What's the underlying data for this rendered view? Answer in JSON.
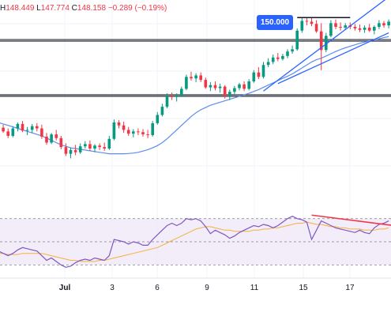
{
  "header": {
    "high_prefix": "H",
    "high": "148.449",
    "low_prefix": "L",
    "low": "147.774",
    "close_prefix": "C",
    "close": "148.158",
    "change": "−0.289 (−0.19%)"
  },
  "price_label": "150.000",
  "x_ticks": [
    {
      "label": "Jul",
      "bold": true
    },
    {
      "label": "3",
      "bold": false
    },
    {
      "label": "6",
      "bold": false
    },
    {
      "label": "9",
      "bold": false
    },
    {
      "label": "11",
      "bold": false
    },
    {
      "label": "15",
      "bold": false
    },
    {
      "label": "17",
      "bold": false
    }
  ],
  "colors": {
    "up": "#089981",
    "down": "#f23645",
    "ma": "#5b8def",
    "channel": "#2962ff",
    "hline": "#2a2e39",
    "rsi": "#7e57c2",
    "rsi_ma": "#f5b041",
    "rsi_band": "#ede7f6",
    "divergence": "#f23645"
  },
  "chart_data": [
    {
      "type": "candlestick",
      "title": "",
      "ylim": [
        138.2,
        150.9
      ],
      "candles": [
        [
          142.25,
          142.45,
          141.75,
          142.35
        ],
        [
          142.35,
          142.55,
          142.0,
          142.1
        ],
        [
          142.1,
          142.3,
          141.65,
          141.8
        ],
        [
          141.8,
          142.45,
          141.7,
          142.3
        ],
        [
          142.3,
          142.7,
          142.1,
          142.6
        ],
        [
          142.6,
          142.8,
          142.05,
          142.15
        ],
        [
          142.15,
          142.4,
          141.85,
          142.2
        ],
        [
          142.2,
          142.6,
          142.0,
          142.45
        ],
        [
          142.45,
          142.65,
          142.1,
          142.3
        ],
        [
          142.3,
          142.55,
          141.6,
          141.75
        ],
        [
          141.75,
          142.0,
          141.2,
          141.35
        ],
        [
          141.35,
          142.0,
          141.25,
          141.9
        ],
        [
          141.9,
          142.2,
          141.5,
          141.65
        ],
        [
          141.65,
          141.8,
          140.9,
          141.05
        ],
        [
          141.05,
          141.3,
          140.45,
          140.6
        ],
        [
          140.6,
          141.0,
          140.3,
          140.85
        ],
        [
          140.85,
          141.2,
          140.5,
          140.7
        ],
        [
          140.7,
          141.3,
          140.6,
          141.1
        ],
        [
          141.1,
          141.45,
          140.95,
          141.25
        ],
        [
          141.25,
          141.5,
          140.8,
          140.95
        ],
        [
          140.95,
          141.25,
          140.7,
          141.15
        ],
        [
          141.15,
          141.3,
          140.85,
          141.05
        ],
        [
          141.05,
          141.35,
          140.8,
          140.95
        ],
        [
          140.95,
          141.8,
          140.85,
          141.6
        ],
        [
          141.6,
          142.9,
          141.5,
          142.7
        ],
        [
          142.7,
          142.85,
          142.3,
          142.5
        ],
        [
          142.5,
          142.75,
          142.0,
          142.2
        ],
        [
          142.2,
          142.4,
          141.8,
          141.95
        ],
        [
          141.95,
          142.25,
          141.7,
          142.1
        ],
        [
          142.1,
          142.3,
          141.85,
          142.05
        ],
        [
          142.05,
          142.25,
          141.75,
          141.9
        ],
        [
          141.9,
          142.2,
          141.65,
          141.85
        ],
        [
          141.85,
          142.8,
          141.75,
          142.65
        ],
        [
          142.65,
          143.4,
          142.55,
          143.2
        ],
        [
          143.2,
          143.95,
          143.1,
          143.75
        ],
        [
          143.75,
          144.65,
          143.65,
          144.45
        ],
        [
          144.45,
          144.7,
          144.2,
          144.4
        ],
        [
          144.4,
          144.65,
          144.1,
          144.5
        ],
        [
          144.5,
          145.1,
          144.4,
          144.95
        ],
        [
          144.95,
          145.9,
          144.85,
          145.75
        ],
        [
          145.75,
          146.1,
          145.5,
          145.65
        ],
        [
          145.65,
          146.0,
          145.4,
          145.85
        ],
        [
          145.85,
          146.05,
          145.4,
          145.55
        ],
        [
          145.55,
          145.7,
          144.95,
          145.05
        ],
        [
          145.05,
          145.4,
          144.8,
          145.2
        ],
        [
          145.2,
          145.45,
          144.85,
          145.0
        ],
        [
          145.0,
          145.3,
          144.7,
          145.1
        ],
        [
          145.1,
          145.2,
          144.3,
          144.5
        ],
        [
          144.5,
          144.9,
          144.2,
          144.75
        ],
        [
          144.75,
          145.15,
          144.6,
          145.0
        ],
        [
          145.0,
          145.35,
          144.85,
          145.25
        ],
        [
          145.25,
          145.45,
          144.8,
          144.95
        ],
        [
          144.95,
          145.6,
          144.85,
          145.45
        ],
        [
          145.45,
          146.2,
          145.35,
          146.05
        ],
        [
          146.05,
          146.4,
          145.6,
          145.75
        ],
        [
          145.75,
          146.75,
          145.65,
          146.55
        ],
        [
          146.55,
          147.0,
          146.4,
          146.75
        ],
        [
          146.75,
          147.25,
          146.6,
          147.05
        ],
        [
          147.05,
          147.35,
          146.8,
          146.95
        ],
        [
          146.95,
          147.3,
          146.85,
          147.15
        ],
        [
          147.15,
          147.6,
          147.0,
          147.45
        ],
        [
          147.45,
          147.85,
          147.3,
          147.6
        ],
        [
          147.6,
          149.0,
          147.5,
          148.85
        ],
        [
          148.85,
          149.75,
          148.7,
          149.5
        ],
        [
          149.5,
          149.7,
          149.2,
          149.45
        ],
        [
          149.45,
          149.7,
          149.15,
          149.3
        ],
        [
          149.3,
          149.55,
          148.7,
          148.8
        ],
        [
          148.8,
          149.35,
          146.2,
          147.55
        ],
        [
          147.55,
          148.7,
          147.4,
          148.5
        ],
        [
          148.5,
          149.55,
          148.4,
          149.35
        ],
        [
          149.35,
          149.6,
          148.95,
          149.1
        ],
        [
          149.1,
          149.4,
          148.85,
          149.05
        ],
        [
          149.05,
          149.35,
          148.9,
          149.2
        ],
        [
          149.2,
          149.4,
          148.95,
          149.1
        ],
        [
          149.1,
          149.3,
          148.85,
          149.0
        ],
        [
          149.0,
          149.25,
          148.75,
          148.9
        ],
        [
          148.9,
          149.2,
          148.7,
          149.05
        ],
        [
          149.05,
          149.3,
          148.75,
          148.85
        ],
        [
          148.85,
          149.2,
          148.6,
          149.1
        ],
        [
          149.1,
          149.55,
          148.95,
          149.35
        ],
        [
          149.35,
          149.5,
          149.05,
          149.2
        ],
        [
          149.2,
          149.6,
          149.0,
          149.45
        ]
      ],
      "moving_average": [
        142.7,
        142.6,
        142.5,
        142.4,
        142.3,
        142.2,
        142.1,
        142.0,
        141.9,
        141.8,
        141.65,
        141.5,
        141.35,
        141.2,
        141.1,
        141.0,
        140.95,
        140.9,
        140.85,
        140.8,
        140.75,
        140.7,
        140.65,
        140.6,
        140.6,
        140.6,
        140.6,
        140.62,
        140.65,
        140.7,
        140.78,
        140.88,
        141.0,
        141.15,
        141.35,
        141.6,
        141.9,
        142.2,
        142.5,
        142.8,
        143.1,
        143.35,
        143.55,
        143.7,
        143.85,
        143.95,
        144.05,
        144.15,
        144.25,
        144.35,
        144.45,
        144.55,
        144.65,
        144.78,
        144.9,
        145.05,
        145.2,
        145.35,
        145.5,
        145.65,
        145.8,
        145.95,
        146.15,
        146.35,
        146.55,
        146.75,
        146.9,
        147.0,
        147.15,
        147.3,
        147.45,
        147.58,
        147.7,
        147.8,
        147.9,
        148.0,
        148.08,
        148.15,
        148.22,
        148.3,
        148.38,
        148.45
      ],
      "horizontal_levels": [
        148.25,
        148.15,
        144.55,
        144.45
      ],
      "channel_lines": [
        {
          "from": [
            55,
            144.8
          ],
          "to": [
            81,
            151.1
          ]
        },
        {
          "from": [
            58,
            145.3
          ],
          "to": [
            81,
            148.7
          ]
        }
      ],
      "resistance_segment": {
        "from": [
          62,
          149.72
        ],
        "to": [
          73,
          149.72
        ]
      },
      "annotations": [
        "150.000"
      ]
    },
    {
      "type": "line",
      "title": "",
      "ylim": [
        20,
        80
      ],
      "band": [
        30,
        70
      ],
      "midline": 50,
      "series": [
        {
          "values": [
            42,
            40,
            38,
            40,
            43,
            45,
            44,
            43,
            42,
            38,
            34,
            36,
            33,
            30,
            28,
            29,
            32,
            34,
            35,
            34,
            36,
            35,
            34,
            38,
            52,
            51,
            50,
            48,
            50,
            49,
            47,
            47,
            52,
            56,
            60,
            64,
            66,
            64,
            66,
            70,
            69,
            70,
            68,
            63,
            57,
            60,
            58,
            56,
            53,
            55,
            58,
            60,
            62,
            64,
            63,
            65,
            64,
            62,
            64,
            67,
            70,
            72,
            70,
            69,
            67,
            52,
            60,
            68,
            66,
            64,
            62,
            61,
            60,
            59,
            58,
            60,
            58,
            57,
            62,
            65,
            66,
            68
          ]
        },
        {
          "values": [
            40,
            40,
            39,
            39,
            39,
            40,
            40,
            40,
            40,
            40,
            39,
            38,
            37,
            36,
            35,
            34,
            34,
            33,
            33,
            33,
            33,
            34,
            34,
            35,
            36,
            37,
            38,
            39,
            40,
            41,
            42,
            43,
            44,
            45,
            47,
            49,
            51,
            53,
            55,
            57,
            59,
            61,
            62,
            63,
            63,
            62,
            61,
            60,
            60,
            59,
            59,
            59,
            59,
            60,
            60,
            61,
            61,
            62,
            62,
            63,
            64,
            65,
            66,
            66,
            67,
            66,
            65,
            65,
            64,
            63,
            63,
            62,
            62,
            61,
            61,
            61,
            60,
            60,
            60,
            61,
            61,
            62
          ]
        }
      ],
      "divergence_line": {
        "from": [
          65,
          73
        ],
        "to": [
          82,
          64
        ]
      }
    }
  ]
}
